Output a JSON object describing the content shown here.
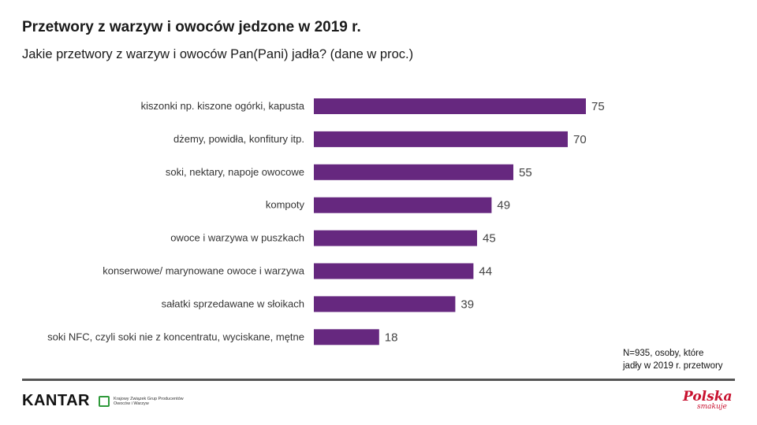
{
  "title": "Przetwory z warzyw i owoców jedzone w 2019 r.",
  "subtitle": "Jakie przetwory z warzyw i owoców Pan(Pani) jadła? (dane w proc.)",
  "note": [
    "N=935, osoby, które",
    "jadły w 2019 r. przetwory"
  ],
  "footer": {
    "brand": "KANTAR",
    "association": "Krajowy Związek Grup Producentów Owoców i Warzyw",
    "logo_main": "Polska",
    "logo_sub": "smakuje"
  },
  "colors": {
    "bar": "#66287f",
    "text": "#222222",
    "rule": "#555555",
    "logo": "#c8102e"
  },
  "chart_data": {
    "type": "bar",
    "orientation": "horizontal",
    "categories": [
      "kiszonki np. kiszone ogórki, kapusta",
      "dżemy, powidła, konfitury itp.",
      "soki, nektary, napoje owocowe",
      "kompoty",
      "owoce i warzywa w puszkach",
      "konserwowe/ marynowane owoce i warzywa",
      "sałatki sprzedawane w słoikach",
      "soki NFC, czyli soki nie z koncentratu, wyciskane, mętne"
    ],
    "values": [
      75,
      70,
      55,
      49,
      45,
      44,
      39,
      18
    ],
    "data_labels": true,
    "axis_visible": false,
    "xlim": [
      0,
      75
    ]
  }
}
